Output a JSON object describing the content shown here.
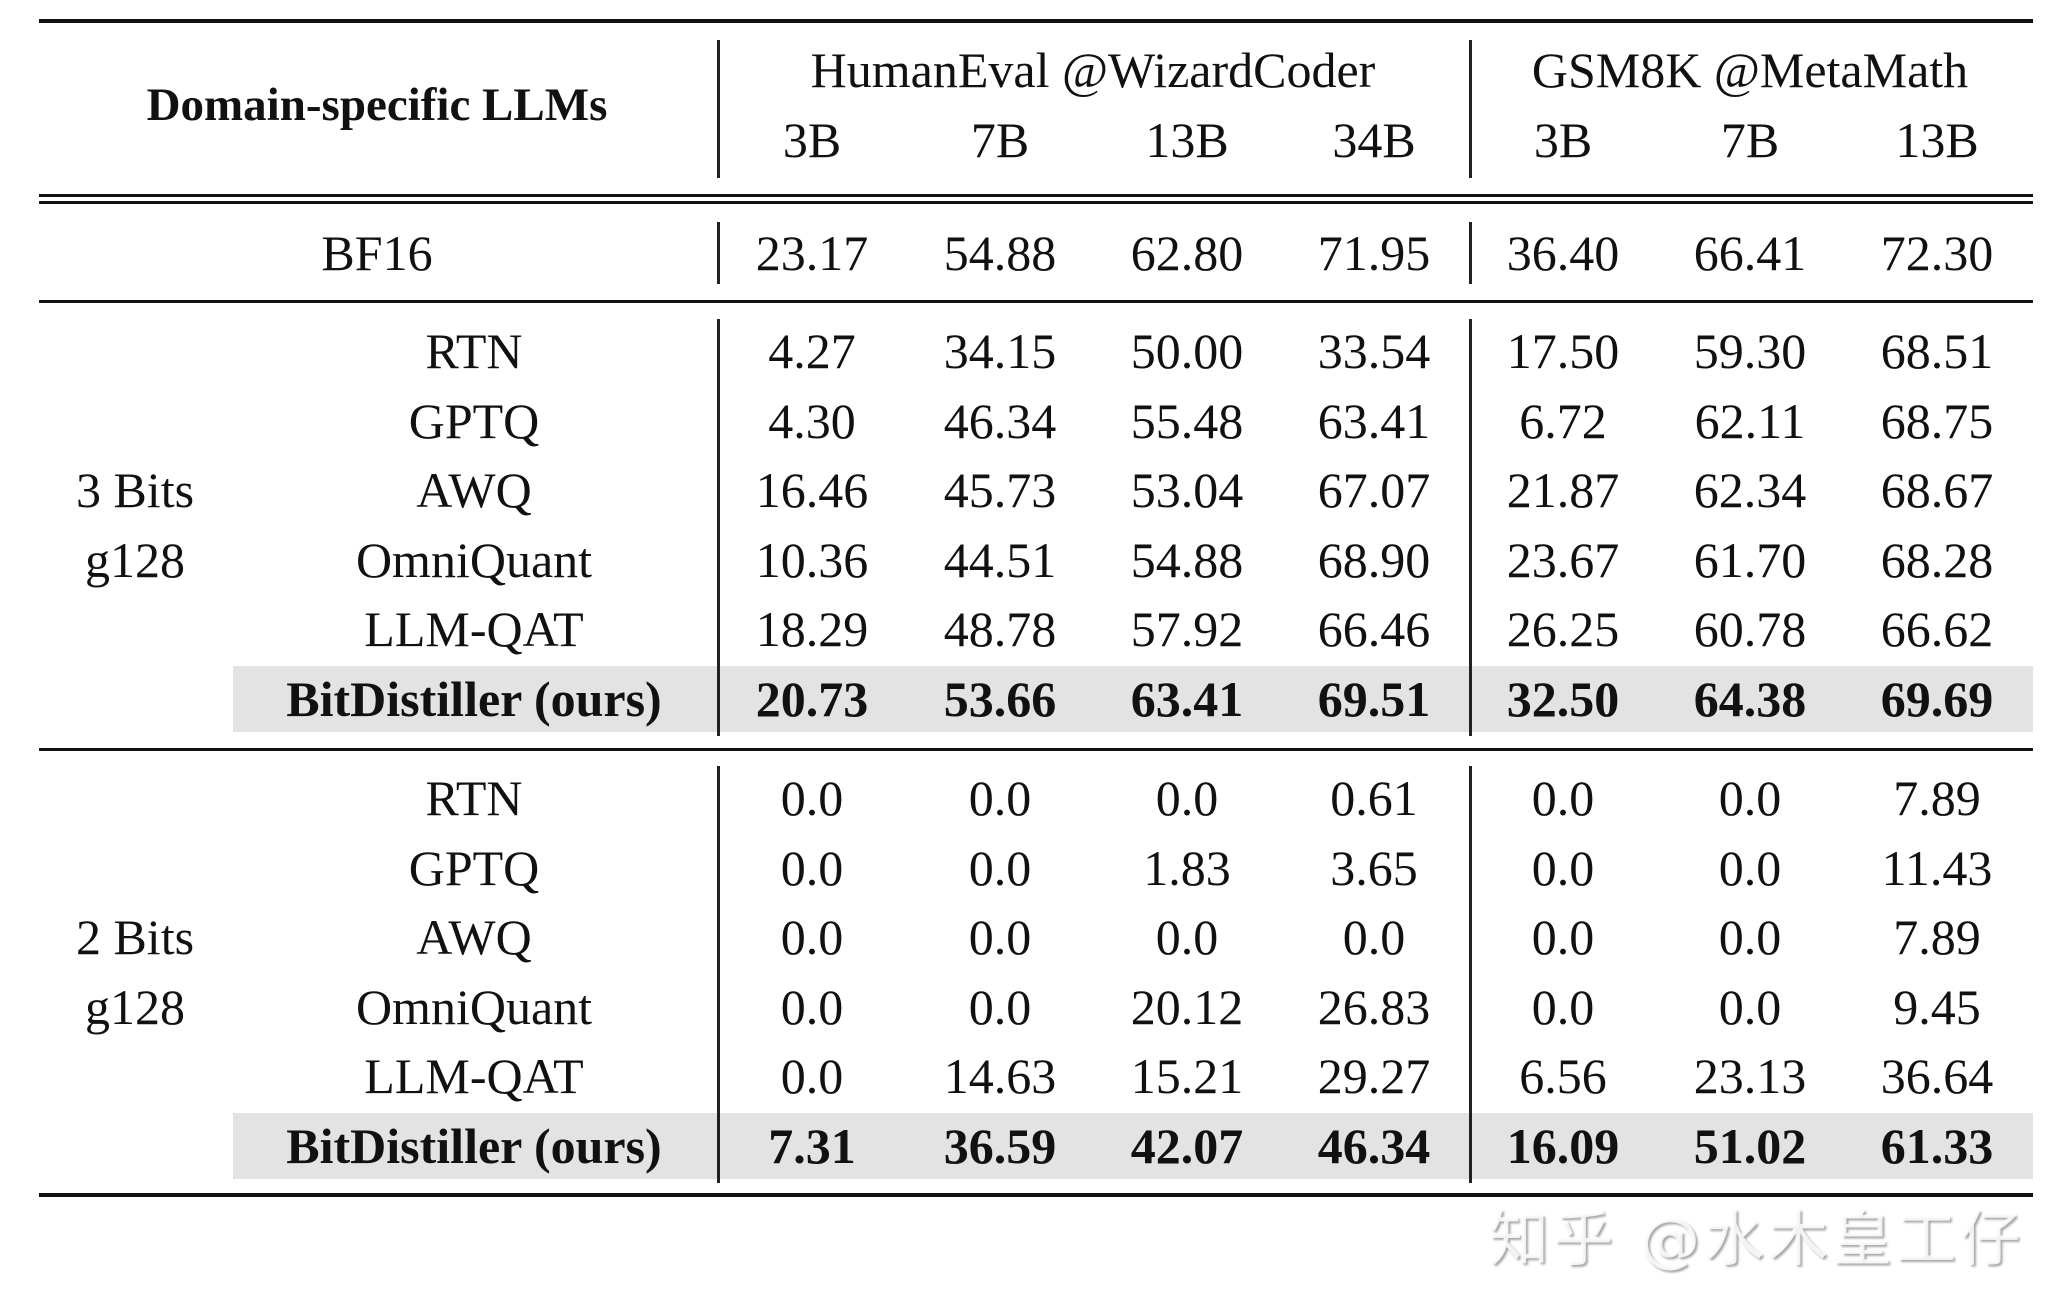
{
  "header": {
    "corner": "Domain-specific LLMs",
    "groups": [
      "HumanEval @WizardCoder",
      "GSM8K @MetaMath"
    ],
    "sizes": [
      "3B",
      "7B",
      "13B",
      "34B",
      "3B",
      "7B",
      "13B"
    ]
  },
  "baseline": {
    "method": "BF16",
    "values": [
      "23.17",
      "54.88",
      "62.80",
      "71.95",
      "36.40",
      "66.41",
      "72.30"
    ]
  },
  "sections": [
    {
      "label": [
        "3 Bits",
        "g128"
      ],
      "rows": [
        {
          "method": "RTN",
          "values": [
            "4.27",
            "34.15",
            "50.00",
            "33.54",
            "17.50",
            "59.30",
            "68.51"
          ]
        },
        {
          "method": "GPTQ",
          "values": [
            "4.30",
            "46.34",
            "55.48",
            "63.41",
            "6.72",
            "62.11",
            "68.75"
          ]
        },
        {
          "method": "AWQ",
          "values": [
            "16.46",
            "45.73",
            "53.04",
            "67.07",
            "21.87",
            "62.34",
            "68.67"
          ]
        },
        {
          "method": "OmniQuant",
          "values": [
            "10.36",
            "44.51",
            "54.88",
            "68.90",
            "23.67",
            "61.70",
            "68.28"
          ]
        },
        {
          "method": "LLM-QAT",
          "values": [
            "18.29",
            "48.78",
            "57.92",
            "66.46",
            "26.25",
            "60.78",
            "66.62"
          ]
        },
        {
          "method": "BitDistiller (ours)",
          "values": [
            "20.73",
            "53.66",
            "63.41",
            "69.51",
            "32.50",
            "64.38",
            "69.69"
          ],
          "highlight": true
        }
      ]
    },
    {
      "label": [
        "2 Bits",
        "g128"
      ],
      "rows": [
        {
          "method": "RTN",
          "values": [
            "0.0",
            "0.0",
            "0.0",
            "0.61",
            "0.0",
            "0.0",
            "7.89"
          ]
        },
        {
          "method": "GPTQ",
          "values": [
            "0.0",
            "0.0",
            "1.83",
            "3.65",
            "0.0",
            "0.0",
            "11.43"
          ]
        },
        {
          "method": "AWQ",
          "values": [
            "0.0",
            "0.0",
            "0.0",
            "0.0",
            "0.0",
            "0.0",
            "7.89"
          ]
        },
        {
          "method": "OmniQuant",
          "values": [
            "0.0",
            "0.0",
            "20.12",
            "26.83",
            "0.0",
            "0.0",
            "9.45"
          ]
        },
        {
          "method": "LLM-QAT",
          "values": [
            "0.0",
            "14.63",
            "15.21",
            "29.27",
            "6.56",
            "23.13",
            "36.64"
          ]
        },
        {
          "method": "BitDistiller (ours)",
          "values": [
            "7.31",
            "36.59",
            "42.07",
            "46.34",
            "16.09",
            "51.02",
            "61.33"
          ],
          "highlight": true
        }
      ]
    }
  ],
  "watermark": "知乎 @水木皇工仔"
}
